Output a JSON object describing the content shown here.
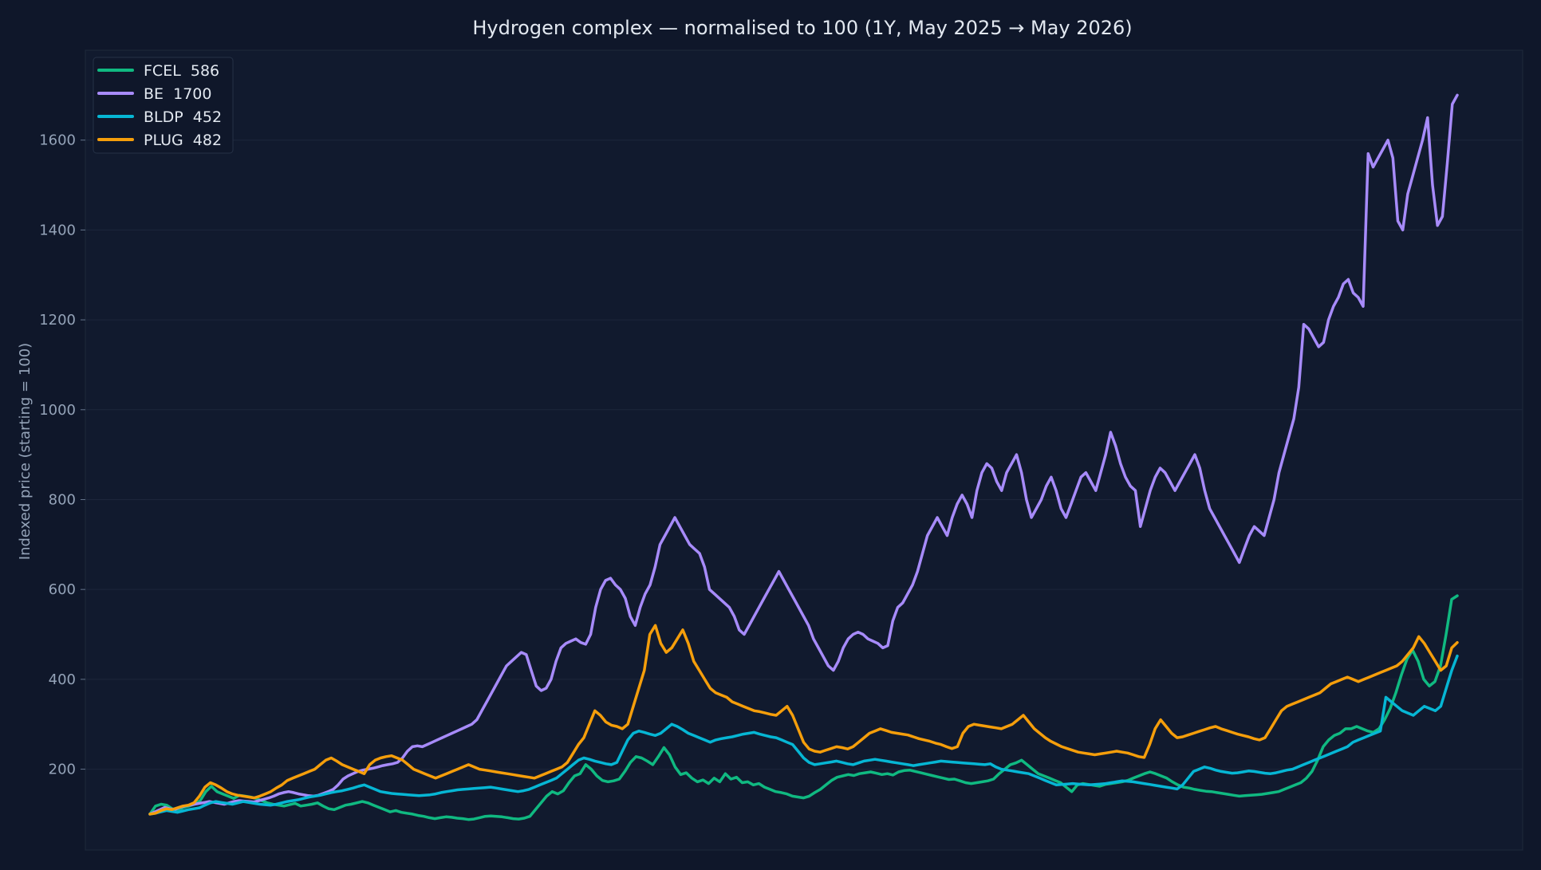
{
  "chart_data": {
    "type": "line",
    "title": "Hydrogen complex — normalised to 100 (1Y, May 2025 → May 2026)",
    "xlabel": "",
    "ylabel": "Indexed price (starting = 100)",
    "ylim": [
      20,
      1800
    ],
    "yticks": [
      200,
      400,
      600,
      800,
      1000,
      1200,
      1400,
      1600
    ],
    "grid": true,
    "legend": "top-left",
    "series": [
      {
        "name": "FCEL  586",
        "color": "#10b981",
        "values": [
          100,
          118,
          122,
          120,
          112,
          108,
          115,
          118,
          122,
          130,
          150,
          162,
          150,
          145,
          140,
          135,
          142,
          140,
          138,
          135,
          130,
          125,
          122,
          120,
          118,
          121,
          124,
          118,
          120,
          122,
          125,
          118,
          112,
          110,
          115,
          120,
          122,
          125,
          128,
          125,
          120,
          115,
          110,
          105,
          108,
          104,
          102,
          100,
          97,
          95,
          92,
          90,
          92,
          94,
          93,
          91,
          90,
          88,
          89,
          92,
          95,
          96,
          95,
          94,
          92,
          90,
          89,
          91,
          95,
          110,
          125,
          140,
          150,
          145,
          152,
          170,
          185,
          190,
          210,
          200,
          185,
          175,
          172,
          174,
          178,
          195,
          215,
          228,
          225,
          218,
          210,
          228,
          248,
          232,
          205,
          188,
          192,
          180,
          172,
          176,
          168,
          180,
          172,
          190,
          178,
          182,
          170,
          172,
          165,
          168,
          160,
          155,
          150,
          148,
          145,
          140,
          138,
          136,
          140,
          148,
          155,
          165,
          175,
          182,
          185,
          188,
          186,
          190,
          192,
          194,
          191,
          188,
          190,
          187,
          194,
          197,
          198,
          195,
          192,
          189,
          186,
          183,
          180,
          177,
          178,
          174,
          170,
          168,
          170,
          172,
          174,
          178,
          190,
          200,
          210,
          214,
          220,
          210,
          200,
          190,
          185,
          180,
          175,
          170,
          160,
          150,
          165,
          168,
          166,
          164,
          162,
          166,
          168,
          170,
          172,
          175,
          180,
          185,
          190,
          194,
          190,
          185,
          180,
          172,
          165,
          160,
          158,
          155,
          153,
          151,
          150,
          148,
          146,
          144,
          142,
          140,
          141,
          142,
          143,
          144,
          146,
          148,
          150,
          155,
          160,
          165,
          170,
          180,
          195,
          220,
          250,
          265,
          275,
          280,
          290,
          290,
          295,
          290,
          285,
          282,
          290,
          310,
          335,
          370,
          410,
          445,
          465,
          440,
          400,
          385,
          395,
          430,
          500,
          578,
          586
        ]
      },
      {
        "name": "BE  1700",
        "color": "#a78bfa",
        "values": [
          100,
          105,
          110,
          115,
          112,
          110,
          115,
          118,
          120,
          122,
          124,
          126,
          128,
          126,
          124,
          122,
          125,
          128,
          130,
          129,
          128,
          127,
          130,
          133,
          136,
          140,
          145,
          148,
          150,
          148,
          145,
          143,
          141,
          140,
          142,
          146,
          150,
          155,
          165,
          178,
          185,
          190,
          195,
          198,
          200,
          202,
          205,
          208,
          210,
          212,
          215,
          225,
          240,
          250,
          252,
          250,
          255,
          260,
          265,
          270,
          275,
          280,
          285,
          290,
          295,
          300,
          310,
          330,
          350,
          370,
          390,
          410,
          430,
          440,
          450,
          460,
          455,
          420,
          385,
          375,
          380,
          400,
          440,
          470,
          480,
          485,
          490,
          482,
          478,
          500,
          560,
          600,
          620,
          625,
          610,
          600,
          580,
          540,
          520,
          560,
          590,
          610,
          650,
          700,
          720,
          740,
          760,
          740,
          720,
          700,
          690,
          680,
          650,
          600,
          590,
          580,
          570,
          560,
          540,
          510,
          500,
          520,
          540,
          560,
          580,
          600,
          620,
          640,
          620,
          600,
          580,
          560,
          540,
          520,
          490,
          470,
          450,
          430,
          420,
          440,
          470,
          490,
          500,
          505,
          500,
          490,
          485,
          480,
          470,
          475,
          530,
          560,
          570,
          590,
          610,
          640,
          680,
          720,
          740,
          760,
          740,
          720,
          760,
          790,
          810,
          790,
          760,
          820,
          860,
          880,
          870,
          840,
          820,
          860,
          880,
          900,
          860,
          800,
          760,
          780,
          800,
          830,
          850,
          820,
          780,
          760,
          790,
          820,
          850,
          860,
          840,
          820,
          860,
          900,
          950,
          920,
          880,
          850,
          830,
          820,
          740,
          780,
          820,
          850,
          870,
          860,
          840,
          820,
          840,
          860,
          880,
          900,
          870,
          820,
          780,
          760,
          740,
          720,
          700,
          680,
          660,
          690,
          720,
          740,
          730,
          720,
          760,
          800,
          860,
          900,
          940,
          980,
          1050,
          1190,
          1180,
          1160,
          1140,
          1150,
          1200,
          1230,
          1250,
          1280,
          1290,
          1260,
          1250,
          1230,
          1570,
          1540,
          1560,
          1580,
          1600,
          1560,
          1420,
          1400,
          1480,
          1520,
          1560,
          1600,
          1650,
          1500,
          1410,
          1430,
          1550,
          1680,
          1700
        ]
      },
      {
        "name": "BLDP  452",
        "color": "#06b6d4",
        "values": [
          100,
          102,
          105,
          108,
          106,
          104,
          107,
          110,
          112,
          114,
          120,
          125,
          128,
          126,
          124,
          122,
          125,
          128,
          126,
          124,
          122,
          121,
          120,
          122,
          125,
          128,
          130,
          132,
          135,
          138,
          140,
          142,
          145,
          148,
          150,
          152,
          155,
          158,
          162,
          165,
          160,
          155,
          150,
          148,
          146,
          145,
          144,
          143,
          142,
          141,
          142,
          143,
          145,
          148,
          150,
          152,
          154,
          155,
          156,
          157,
          158,
          159,
          160,
          158,
          156,
          154,
          152,
          150,
          152,
          155,
          160,
          165,
          170,
          175,
          180,
          190,
          200,
          210,
          220,
          225,
          222,
          218,
          215,
          212,
          210,
          215,
          240,
          265,
          280,
          285,
          282,
          278,
          275,
          280,
          290,
          300,
          295,
          288,
          280,
          275,
          270,
          265,
          260,
          265,
          268,
          270,
          272,
          275,
          278,
          280,
          282,
          278,
          275,
          272,
          270,
          265,
          260,
          255,
          240,
          225,
          215,
          210,
          212,
          214,
          216,
          218,
          215,
          212,
          210,
          214,
          218,
          220,
          222,
          220,
          218,
          216,
          214,
          212,
          210,
          208,
          210,
          212,
          214,
          216,
          218,
          217,
          216,
          215,
          214,
          213,
          212,
          211,
          210,
          212,
          205,
          200,
          198,
          196,
          194,
          192,
          190,
          185,
          180,
          175,
          170,
          165,
          166,
          167,
          168,
          167,
          166,
          165,
          166,
          167,
          168,
          170,
          172,
          174,
          173,
          172,
          170,
          168,
          166,
          164,
          162,
          160,
          158,
          156,
          165,
          180,
          195,
          200,
          205,
          202,
          198,
          195,
          193,
          191,
          192,
          194,
          196,
          195,
          193,
          191,
          190,
          192,
          195,
          198,
          200,
          205,
          210,
          215,
          220,
          225,
          230,
          235,
          240,
          245,
          250,
          260,
          265,
          270,
          275,
          280,
          285,
          360,
          350,
          340,
          330,
          325,
          320,
          330,
          340,
          335,
          330,
          340,
          380,
          420,
          452
        ]
      },
      {
        "name": "PLUG  482",
        "color": "#f59e0b",
        "values": [
          100,
          102,
          108,
          112,
          110,
          114,
          118,
          120,
          125,
          140,
          160,
          170,
          165,
          158,
          150,
          145,
          142,
          140,
          138,
          136,
          140,
          145,
          150,
          158,
          165,
          175,
          180,
          185,
          190,
          195,
          200,
          210,
          220,
          225,
          218,
          210,
          205,
          200,
          195,
          190,
          210,
          220,
          225,
          228,
          230,
          225,
          220,
          210,
          200,
          195,
          190,
          185,
          180,
          185,
          190,
          195,
          200,
          205,
          210,
          205,
          200,
          198,
          196,
          194,
          192,
          190,
          188,
          186,
          184,
          182,
          180,
          185,
          190,
          195,
          200,
          205,
          215,
          235,
          255,
          270,
          300,
          330,
          320,
          305,
          298,
          295,
          290,
          300,
          340,
          380,
          420,
          500,
          520,
          480,
          460,
          470,
          490,
          510,
          480,
          440,
          420,
          400,
          380,
          370,
          365,
          360,
          350,
          345,
          340,
          335,
          330,
          328,
          325,
          322,
          320,
          330,
          340,
          320,
          290,
          260,
          245,
          240,
          238,
          242,
          246,
          250,
          248,
          245,
          250,
          260,
          270,
          280,
          285,
          290,
          286,
          282,
          280,
          278,
          276,
          272,
          268,
          265,
          262,
          258,
          255,
          250,
          246,
          250,
          280,
          295,
          300,
          298,
          296,
          294,
          292,
          290,
          295,
          300,
          310,
          320,
          305,
          290,
          280,
          270,
          262,
          256,
          250,
          246,
          242,
          238,
          236,
          234,
          232,
          234,
          236,
          238,
          240,
          238,
          236,
          232,
          228,
          226,
          255,
          290,
          310,
          295,
          280,
          270,
          272,
          276,
          280,
          284,
          288,
          292,
          295,
          290,
          286,
          282,
          278,
          275,
          272,
          268,
          265,
          270,
          290,
          310,
          330,
          340,
          345,
          350,
          355,
          360,
          365,
          370,
          380,
          390,
          395,
          400,
          405,
          400,
          395,
          400,
          405,
          410,
          415,
          420,
          425,
          430,
          440,
          455,
          470,
          495,
          480,
          460,
          440,
          420,
          430,
          470,
          482
        ]
      }
    ]
  }
}
